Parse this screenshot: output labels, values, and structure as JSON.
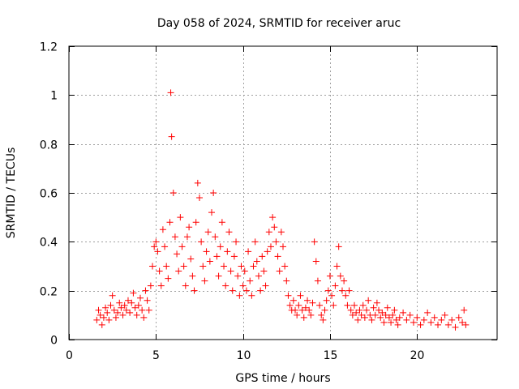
{
  "chart_data": {
    "type": "scatter",
    "title": "Day 058 of 2024, SRMTID for receiver aruc",
    "xlabel": "GPS time / hours",
    "ylabel": "SRMTID / TECUs",
    "xlim": [
      0,
      24.6
    ],
    "ylim": [
      0,
      1.2
    ],
    "grid": true,
    "marker": "+",
    "x_ticks": [
      0,
      5,
      10,
      15,
      20
    ],
    "x_tick_labels": [
      "0",
      "5",
      "10",
      "15",
      "20"
    ],
    "y_ticks": [
      0,
      0.2,
      0.4,
      0.6,
      0.8,
      1.0,
      1.2
    ],
    "y_tick_labels": [
      "0",
      "0.2",
      "0.4",
      "0.6",
      "0.8",
      "1",
      "1.2"
    ],
    "series": [
      {
        "name": "SRMTID",
        "color": "#ff0000",
        "points": [
          [
            1.6,
            0.08
          ],
          [
            1.7,
            0.12
          ],
          [
            1.8,
            0.1
          ],
          [
            1.9,
            0.06
          ],
          [
            2.0,
            0.09
          ],
          [
            2.1,
            0.13
          ],
          [
            2.2,
            0.11
          ],
          [
            2.3,
            0.08
          ],
          [
            2.4,
            0.14
          ],
          [
            2.5,
            0.18
          ],
          [
            2.6,
            0.12
          ],
          [
            2.7,
            0.09
          ],
          [
            2.8,
            0.11
          ],
          [
            2.9,
            0.15
          ],
          [
            3.0,
            0.13
          ],
          [
            3.1,
            0.1
          ],
          [
            3.2,
            0.14
          ],
          [
            3.3,
            0.12
          ],
          [
            3.4,
            0.16
          ],
          [
            3.5,
            0.11
          ],
          [
            3.6,
            0.15
          ],
          [
            3.7,
            0.19
          ],
          [
            3.8,
            0.13
          ],
          [
            3.9,
            0.1
          ],
          [
            4.0,
            0.14
          ],
          [
            4.1,
            0.17
          ],
          [
            4.2,
            0.12
          ],
          [
            4.3,
            0.09
          ],
          [
            4.4,
            0.2
          ],
          [
            4.5,
            0.16
          ],
          [
            4.6,
            0.12
          ],
          [
            4.7,
            0.22
          ],
          [
            4.8,
            0.3
          ],
          [
            4.9,
            0.38
          ],
          [
            5.0,
            0.4
          ],
          [
            5.1,
            0.36
          ],
          [
            5.2,
            0.28
          ],
          [
            5.3,
            0.22
          ],
          [
            5.4,
            0.45
          ],
          [
            5.5,
            0.38
          ],
          [
            5.6,
            0.3
          ],
          [
            5.7,
            0.25
          ],
          [
            5.8,
            0.48
          ],
          [
            5.85,
            1.01
          ],
          [
            5.9,
            0.83
          ],
          [
            6.0,
            0.6
          ],
          [
            6.1,
            0.42
          ],
          [
            6.2,
            0.35
          ],
          [
            6.3,
            0.28
          ],
          [
            6.4,
            0.5
          ],
          [
            6.5,
            0.38
          ],
          [
            6.6,
            0.3
          ],
          [
            6.7,
            0.22
          ],
          [
            6.8,
            0.42
          ],
          [
            6.9,
            0.46
          ],
          [
            7.0,
            0.33
          ],
          [
            7.1,
            0.26
          ],
          [
            7.2,
            0.2
          ],
          [
            7.3,
            0.48
          ],
          [
            7.4,
            0.64
          ],
          [
            7.5,
            0.58
          ],
          [
            7.6,
            0.4
          ],
          [
            7.7,
            0.3
          ],
          [
            7.8,
            0.24
          ],
          [
            7.9,
            0.36
          ],
          [
            8.0,
            0.44
          ],
          [
            8.1,
            0.32
          ],
          [
            8.2,
            0.52
          ],
          [
            8.3,
            0.6
          ],
          [
            8.4,
            0.42
          ],
          [
            8.5,
            0.34
          ],
          [
            8.6,
            0.26
          ],
          [
            8.7,
            0.38
          ],
          [
            8.8,
            0.48
          ],
          [
            8.9,
            0.3
          ],
          [
            9.0,
            0.22
          ],
          [
            9.1,
            0.36
          ],
          [
            9.2,
            0.44
          ],
          [
            9.3,
            0.28
          ],
          [
            9.4,
            0.2
          ],
          [
            9.5,
            0.34
          ],
          [
            9.6,
            0.4
          ],
          [
            9.7,
            0.26
          ],
          [
            9.8,
            0.18
          ],
          [
            9.9,
            0.3
          ],
          [
            10.0,
            0.22
          ],
          [
            10.1,
            0.28
          ],
          [
            10.2,
            0.2
          ],
          [
            10.3,
            0.36
          ],
          [
            10.4,
            0.24
          ],
          [
            10.5,
            0.18
          ],
          [
            10.6,
            0.3
          ],
          [
            10.7,
            0.4
          ],
          [
            10.8,
            0.32
          ],
          [
            10.9,
            0.26
          ],
          [
            11.0,
            0.2
          ],
          [
            11.1,
            0.34
          ],
          [
            11.2,
            0.28
          ],
          [
            11.3,
            0.22
          ],
          [
            11.4,
            0.36
          ],
          [
            11.5,
            0.44
          ],
          [
            11.6,
            0.38
          ],
          [
            11.7,
            0.5
          ],
          [
            11.8,
            0.46
          ],
          [
            11.9,
            0.4
          ],
          [
            12.0,
            0.34
          ],
          [
            12.1,
            0.28
          ],
          [
            12.2,
            0.44
          ],
          [
            12.3,
            0.38
          ],
          [
            12.4,
            0.3
          ],
          [
            12.5,
            0.24
          ],
          [
            12.6,
            0.18
          ],
          [
            12.7,
            0.14
          ],
          [
            12.8,
            0.12
          ],
          [
            12.9,
            0.16
          ],
          [
            13.0,
            0.12
          ],
          [
            13.1,
            0.1
          ],
          [
            13.2,
            0.14
          ],
          [
            13.3,
            0.18
          ],
          [
            13.4,
            0.12
          ],
          [
            13.5,
            0.09
          ],
          [
            13.6,
            0.13
          ],
          [
            13.7,
            0.16
          ],
          [
            13.8,
            0.12
          ],
          [
            13.9,
            0.1
          ],
          [
            14.0,
            0.15
          ],
          [
            14.1,
            0.4
          ],
          [
            14.2,
            0.32
          ],
          [
            14.3,
            0.24
          ],
          [
            14.4,
            0.14
          ],
          [
            14.5,
            0.1
          ],
          [
            14.6,
            0.08
          ],
          [
            14.7,
            0.12
          ],
          [
            14.8,
            0.16
          ],
          [
            14.9,
            0.2
          ],
          [
            15.0,
            0.26
          ],
          [
            15.1,
            0.18
          ],
          [
            15.2,
            0.14
          ],
          [
            15.3,
            0.22
          ],
          [
            15.4,
            0.3
          ],
          [
            15.5,
            0.38
          ],
          [
            15.6,
            0.26
          ],
          [
            15.7,
            0.2
          ],
          [
            15.8,
            0.24
          ],
          [
            15.9,
            0.18
          ],
          [
            16.0,
            0.14
          ],
          [
            16.1,
            0.2
          ],
          [
            16.2,
            0.12
          ],
          [
            16.3,
            0.1
          ],
          [
            16.4,
            0.14
          ],
          [
            16.5,
            0.11
          ],
          [
            16.6,
            0.08
          ],
          [
            16.7,
            0.12
          ],
          [
            16.8,
            0.1
          ],
          [
            16.9,
            0.14
          ],
          [
            17.0,
            0.09
          ],
          [
            17.1,
            0.12
          ],
          [
            17.2,
            0.16
          ],
          [
            17.3,
            0.1
          ],
          [
            17.4,
            0.08
          ],
          [
            17.5,
            0.13
          ],
          [
            17.6,
            0.1
          ],
          [
            17.7,
            0.15
          ],
          [
            17.8,
            0.12
          ],
          [
            17.9,
            0.09
          ],
          [
            18.0,
            0.11
          ],
          [
            18.1,
            0.07
          ],
          [
            18.2,
            0.1
          ],
          [
            18.3,
            0.13
          ],
          [
            18.4,
            0.09
          ],
          [
            18.5,
            0.07
          ],
          [
            18.6,
            0.1
          ],
          [
            18.7,
            0.12
          ],
          [
            18.8,
            0.08
          ],
          [
            18.9,
            0.06
          ],
          [
            19.0,
            0.09
          ],
          [
            19.2,
            0.11
          ],
          [
            19.4,
            0.08
          ],
          [
            19.6,
            0.1
          ],
          [
            19.8,
            0.07
          ],
          [
            20.0,
            0.09
          ],
          [
            20.2,
            0.06
          ],
          [
            20.4,
            0.08
          ],
          [
            20.6,
            0.11
          ],
          [
            20.8,
            0.07
          ],
          [
            21.0,
            0.09
          ],
          [
            21.2,
            0.06
          ],
          [
            21.4,
            0.08
          ],
          [
            21.6,
            0.1
          ],
          [
            21.8,
            0.06
          ],
          [
            22.0,
            0.08
          ],
          [
            22.2,
            0.05
          ],
          [
            22.4,
            0.09
          ],
          [
            22.6,
            0.07
          ],
          [
            22.7,
            0.12
          ],
          [
            22.8,
            0.06
          ]
        ]
      }
    ]
  }
}
